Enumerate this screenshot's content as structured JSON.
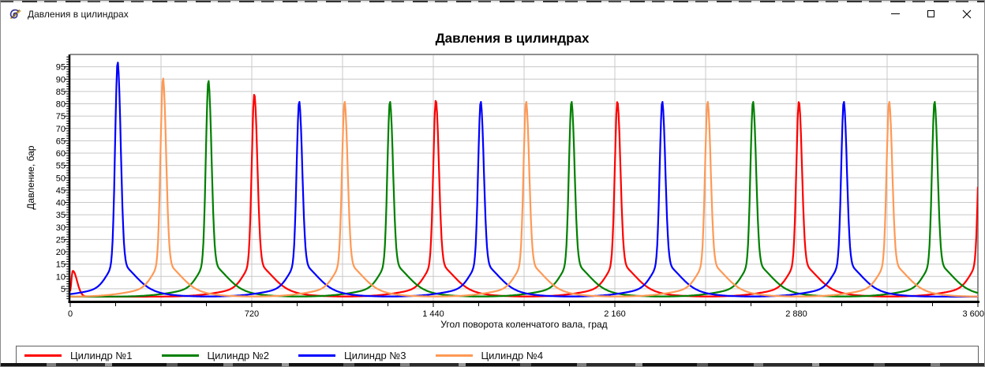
{
  "window": {
    "title": "Давления в цилиндрах",
    "icon": "app-logo-swirl",
    "controls": {
      "minimize": "minimize",
      "maximize": "maximize",
      "close": "close"
    }
  },
  "chart_data": {
    "type": "line",
    "title": "Давления в цилиндрах",
    "xlabel": "Угол поворота коленчатого вала, град",
    "ylabel": "Давление, бар",
    "xlim": [
      0,
      3600
    ],
    "ylim": [
      0,
      100
    ],
    "x_major_ticks": [
      0,
      720,
      1440,
      2160,
      2880,
      3600
    ],
    "x_tick_labels": [
      "0",
      "720",
      "1 440",
      "2 160",
      "2 880",
      "3 600"
    ],
    "x_minor_step": 180,
    "x_grid_step": 360,
    "y_label_min": 5,
    "y_label_max": 95,
    "y_label_step": 5,
    "y_minor_step": 1,
    "grid": true,
    "legend_position": "bottom",
    "baseline_pressure": 1.8,
    "curve_shape": {
      "sigma_left": 14,
      "sigma_right": 17,
      "flank_height": 10,
      "flank_sigma_left": 55,
      "flank_sigma_right": 90,
      "tail_height": 3.5,
      "tail_sigma": 170
    },
    "series": [
      {
        "name": "Цилиндр №1",
        "color": "#ff0000",
        "peaks": [
          {
            "angle": 730,
            "pressure": 84
          },
          {
            "angle": 1450,
            "pressure": 81.5
          },
          {
            "angle": 2170,
            "pressure": 81
          },
          {
            "angle": 2890,
            "pressure": 81
          },
          {
            "angle": 3612,
            "pressure": 81
          }
        ],
        "bumps": [
          {
            "angle": 10,
            "height": 10.5,
            "sigma_left": 8,
            "sigma_right": 24
          }
        ]
      },
      {
        "name": "Цилиндр №2",
        "color": "#008000",
        "peaks": [
          {
            "angle": 548,
            "pressure": 89.5
          },
          {
            "angle": 1268,
            "pressure": 81
          },
          {
            "angle": 1988,
            "pressure": 81
          },
          {
            "angle": 2708,
            "pressure": 81
          },
          {
            "angle": 3428,
            "pressure": 81
          }
        ]
      },
      {
        "name": "Цилиндр №3",
        "color": "#0000ff",
        "peaks": [
          {
            "angle": 188,
            "pressure": 97
          },
          {
            "angle": 908,
            "pressure": 81
          },
          {
            "angle": 1628,
            "pressure": 81
          },
          {
            "angle": 2348,
            "pressure": 81
          },
          {
            "angle": 3068,
            "pressure": 81
          }
        ]
      },
      {
        "name": "Цилиндр №4",
        "color": "#ff9955",
        "peaks": [
          {
            "angle": 368,
            "pressure": 90.5
          },
          {
            "angle": 1088,
            "pressure": 81
          },
          {
            "angle": 1808,
            "pressure": 81
          },
          {
            "angle": 2528,
            "pressure": 81
          },
          {
            "angle": 3248,
            "pressure": 81
          }
        ]
      }
    ],
    "colors": {
      "grid": "#c8c8c8",
      "border": "#8f8f8f",
      "axis": "#000000"
    }
  }
}
